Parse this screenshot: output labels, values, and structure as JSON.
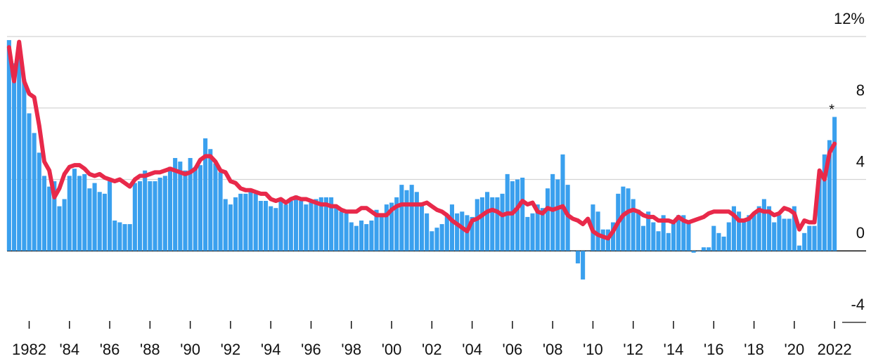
{
  "chart_data": {
    "type": "bar+line",
    "x": [
      1981,
      1981.25,
      1981.5,
      1981.75,
      1982,
      1982.25,
      1982.5,
      1982.75,
      1983,
      1983.25,
      1983.5,
      1983.75,
      1984,
      1984.25,
      1984.5,
      1984.75,
      1985,
      1985.25,
      1985.5,
      1985.75,
      1986,
      1986.25,
      1986.5,
      1986.75,
      1987,
      1987.25,
      1987.5,
      1987.75,
      1988,
      1988.25,
      1988.5,
      1988.75,
      1989,
      1989.25,
      1989.5,
      1989.75,
      1990,
      1990.25,
      1990.5,
      1990.75,
      1991,
      1991.25,
      1991.5,
      1991.75,
      1992,
      1992.25,
      1992.5,
      1992.75,
      1993,
      1993.25,
      1993.5,
      1993.75,
      1994,
      1994.25,
      1994.5,
      1994.75,
      1995,
      1995.25,
      1995.5,
      1995.75,
      1996,
      1996.25,
      1996.5,
      1996.75,
      1997,
      1997.25,
      1997.5,
      1997.75,
      1998,
      1998.25,
      1998.5,
      1998.75,
      1999,
      1999.25,
      1999.5,
      1999.75,
      2000,
      2000.25,
      2000.5,
      2000.75,
      2001,
      2001.25,
      2001.5,
      2001.75,
      2002,
      2002.25,
      2002.5,
      2002.75,
      2003,
      2003.25,
      2003.5,
      2003.75,
      2004,
      2004.25,
      2004.5,
      2004.75,
      2005,
      2005.25,
      2005.5,
      2005.75,
      2006,
      2006.25,
      2006.5,
      2006.75,
      2007,
      2007.25,
      2007.5,
      2007.75,
      2008,
      2008.25,
      2008.5,
      2008.75,
      2009,
      2009.25,
      2009.5,
      2009.75,
      2010,
      2010.25,
      2010.5,
      2010.75,
      2011,
      2011.25,
      2011.5,
      2011.75,
      2012,
      2012.25,
      2012.5,
      2012.75,
      2013,
      2013.25,
      2013.5,
      2013.75,
      2014,
      2014.25,
      2014.5,
      2014.75,
      2015,
      2015.25,
      2015.5,
      2015.75,
      2016,
      2016.25,
      2016.5,
      2016.75,
      2017,
      2017.25,
      2017.5,
      2017.75,
      2018,
      2018.25,
      2018.5,
      2018.75,
      2019,
      2019.25,
      2019.5,
      2019.75,
      2020,
      2020.25,
      2020.5,
      2020.75,
      2021,
      2021.25,
      2021.5,
      2021.75,
      2022
    ],
    "series": [
      {
        "kind": "bar",
        "color": "#3aa0ee",
        "values": [
          11.8,
          10.5,
          10.9,
          9.6,
          7.7,
          6.6,
          5.5,
          4.2,
          3.6,
          3.9,
          2.5,
          2.9,
          4.2,
          4.6,
          4.2,
          4.3,
          3.5,
          3.8,
          3.3,
          3.2,
          3.9,
          1.7,
          1.6,
          1.5,
          1.5,
          3.8,
          3.9,
          4.5,
          3.9,
          3.9,
          4.1,
          4.2,
          4.7,
          5.2,
          5.0,
          4.5,
          5.2,
          4.7,
          4.8,
          6.3,
          5.7,
          4.9,
          4.4,
          2.9,
          2.6,
          3.0,
          3.2,
          3.2,
          3.3,
          3.2,
          2.8,
          2.8,
          2.5,
          2.4,
          2.8,
          2.6,
          2.8,
          3.1,
          2.8,
          2.6,
          2.7,
          2.9,
          3.0,
          3.0,
          3.0,
          2.5,
          2.2,
          2.1,
          1.6,
          1.4,
          1.7,
          1.5,
          1.7,
          2.3,
          2.1,
          2.6,
          2.7,
          3.0,
          3.7,
          3.4,
          3.7,
          3.3,
          2.7,
          2.1,
          1.1,
          1.3,
          1.5,
          2.0,
          2.6,
          2.1,
          2.2,
          2.0,
          1.9,
          2.9,
          3.0,
          3.3,
          3.0,
          3.0,
          3.2,
          4.3,
          3.9,
          4.0,
          4.1,
          1.9,
          2.1,
          2.6,
          2.4,
          3.5,
          4.3,
          4.0,
          5.4,
          3.7,
          0.0,
          -0.7,
          -1.6,
          0.0,
          2.6,
          2.2,
          1.2,
          1.2,
          1.6,
          3.2,
          3.6,
          3.5,
          2.9,
          2.3,
          1.4,
          2.2,
          1.6,
          1.1,
          2.0,
          1.0,
          1.6,
          2.0,
          2.0,
          1.7,
          -0.1,
          0.0,
          0.2,
          0.2,
          1.4,
          1.0,
          0.8,
          1.6,
          2.5,
          2.2,
          1.7,
          2.0,
          2.1,
          2.5,
          2.9,
          2.5,
          1.6,
          2.0,
          1.8,
          1.8,
          2.5,
          0.3,
          1.0,
          1.4,
          1.4,
          4.2,
          5.4,
          6.2,
          7.5
        ]
      },
      {
        "kind": "line",
        "color": "#e8294a",
        "values": [
          11.4,
          9.5,
          11.7,
          9.5,
          8.8,
          8.6,
          7.0,
          5.0,
          4.5,
          3.0,
          3.5,
          4.3,
          4.7,
          4.8,
          4.8,
          4.6,
          4.3,
          4.2,
          4.3,
          4.1,
          4.0,
          3.9,
          4.0,
          3.8,
          3.6,
          4.0,
          4.2,
          4.2,
          4.3,
          4.4,
          4.4,
          4.5,
          4.6,
          4.5,
          4.4,
          4.3,
          4.4,
          4.6,
          5.1,
          5.3,
          5.3,
          5.0,
          4.5,
          4.4,
          3.9,
          3.8,
          3.5,
          3.4,
          3.4,
          3.3,
          3.2,
          3.2,
          2.9,
          2.8,
          2.9,
          2.7,
          2.9,
          3.0,
          2.9,
          2.9,
          2.8,
          2.7,
          2.6,
          2.6,
          2.5,
          2.5,
          2.3,
          2.2,
          2.2,
          2.2,
          2.4,
          2.4,
          2.2,
          2.0,
          2.0,
          2.0,
          2.3,
          2.5,
          2.6,
          2.6,
          2.6,
          2.6,
          2.6,
          2.7,
          2.5,
          2.3,
          2.2,
          2.0,
          1.7,
          1.5,
          1.3,
          1.1,
          1.7,
          1.8,
          2.0,
          2.2,
          2.3,
          2.2,
          2.0,
          2.1,
          2.1,
          2.4,
          2.8,
          2.6,
          2.7,
          2.2,
          2.1,
          2.4,
          2.3,
          2.4,
          2.5,
          2.0,
          1.8,
          1.7,
          1.5,
          1.8,
          1.1,
          0.9,
          0.8,
          0.7,
          1.1,
          1.6,
          2.0,
          2.2,
          2.3,
          2.2,
          2.0,
          1.9,
          1.9,
          1.7,
          1.7,
          1.7,
          1.6,
          1.9,
          1.7,
          1.6,
          1.7,
          1.8,
          1.9,
          2.1,
          2.2,
          2.2,
          2.2,
          2.2,
          2.0,
          1.7,
          1.7,
          1.8,
          2.1,
          2.3,
          2.2,
          2.2,
          2.0,
          2.1,
          2.4,
          2.3,
          2.1,
          1.2,
          1.7,
          1.6,
          1.6,
          4.5,
          4.0,
          5.5,
          6.0
        ]
      }
    ],
    "annotation": "*",
    "xlim": [
      1980.9,
      2022.1
    ],
    "xticks": [
      {
        "value": 1982,
        "label": "1982"
      },
      {
        "value": 1984,
        "label": "'84"
      },
      {
        "value": 1986,
        "label": "'86"
      },
      {
        "value": 1988,
        "label": "'88"
      },
      {
        "value": 1990,
        "label": "'90"
      },
      {
        "value": 1992,
        "label": "'92"
      },
      {
        "value": 1994,
        "label": "'94"
      },
      {
        "value": 1996,
        "label": "'96"
      },
      {
        "value": 1998,
        "label": "'98"
      },
      {
        "value": 2000,
        "label": "'00"
      },
      {
        "value": 2002,
        "label": "'02"
      },
      {
        "value": 2004,
        "label": "'04"
      },
      {
        "value": 2006,
        "label": "'06"
      },
      {
        "value": 2008,
        "label": "'08"
      },
      {
        "value": 2010,
        "label": "'10"
      },
      {
        "value": 2012,
        "label": "'12"
      },
      {
        "value": 2014,
        "label": "'14"
      },
      {
        "value": 2016,
        "label": "'16"
      },
      {
        "value": 2018,
        "label": "'18"
      },
      {
        "value": 2020,
        "label": "'20"
      },
      {
        "value": 2022,
        "label": "2022"
      }
    ],
    "ylim": [
      -4.5,
      12.5
    ],
    "yticks": [
      -4,
      0,
      4,
      8,
      {
        "value": 12,
        "label": "12%"
      }
    ],
    "grid": true
  }
}
